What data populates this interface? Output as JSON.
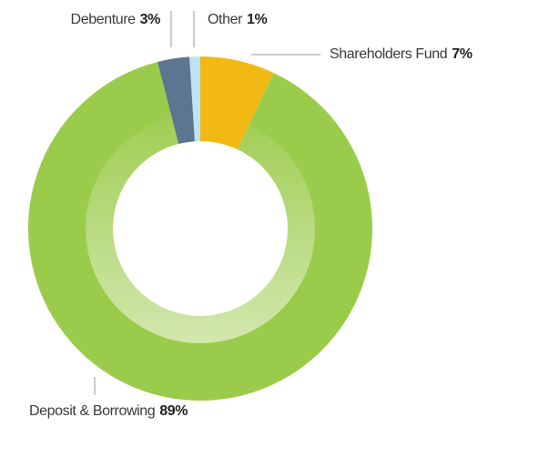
{
  "chart_data": {
    "type": "donut",
    "categories": [
      "Shareholders Fund",
      "Deposit & Borrowing",
      "Debenture",
      "Other"
    ],
    "values": [
      7,
      89,
      3,
      1
    ],
    "value_labels": [
      "7%",
      "89%",
      "3%",
      "1%"
    ],
    "colors": [
      "#f2b915",
      "#9bcb4b",
      "#5e7590",
      "#bfe3f3"
    ]
  }
}
